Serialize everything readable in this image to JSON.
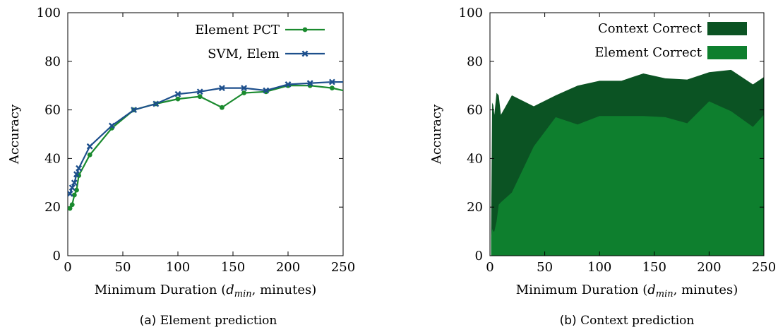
{
  "chart_data": [
    {
      "type": "line",
      "caption_letter": "(a)",
      "caption_text": "Element prediction",
      "xlabel": "Minimum Duration (d_min, minutes)",
      "xlabel_prefix": "Minimum Duration (",
      "xlabel_var": "d",
      "xlabel_sub": "min",
      "xlabel_suffix": ", minutes)",
      "ylabel": "Accuracy",
      "xlim": [
        0,
        250
      ],
      "ylim": [
        0,
        100
      ],
      "xticks": [
        0,
        50,
        100,
        150,
        200,
        250
      ],
      "yticks": [
        0,
        20,
        40,
        60,
        80,
        100
      ],
      "legend_position": "top-right",
      "series": [
        {
          "name": "Element PCT",
          "color": "#1a8a2e",
          "marker": "circle",
          "x": [
            2,
            4,
            6,
            8,
            10,
            20,
            40,
            60,
            80,
            100,
            120,
            140,
            160,
            180,
            200,
            220,
            240,
            250
          ],
          "y": [
            19.5,
            21,
            25,
            27,
            33,
            41.5,
            52.5,
            60,
            62.5,
            64.5,
            65.5,
            61,
            67,
            67.5,
            70,
            70,
            69,
            68
          ]
        },
        {
          "name": "SVM, Elem",
          "color": "#1d4f8c",
          "marker": "x",
          "x": [
            2,
            4,
            6,
            8,
            10,
            20,
            40,
            60,
            80,
            100,
            120,
            140,
            160,
            180,
            200,
            220,
            240,
            250
          ],
          "y": [
            25.5,
            28,
            30,
            33.5,
            36,
            45,
            53.5,
            60,
            62.5,
            66.5,
            67.5,
            69,
            69,
            68,
            70.5,
            71,
            71.5,
            71.5
          ]
        }
      ]
    },
    {
      "type": "area",
      "caption_letter": "(b)",
      "caption_text": "Context prediction",
      "xlabel": "Minimum Duration (d_min, minutes)",
      "xlabel_prefix": "Minimum Duration (",
      "xlabel_var": "d",
      "xlabel_sub": "min",
      "xlabel_suffix": ", minutes)",
      "ylabel": "Accuracy",
      "xlim": [
        0,
        250
      ],
      "ylim": [
        0,
        100
      ],
      "xticks": [
        0,
        50,
        100,
        150,
        200,
        250
      ],
      "yticks": [
        0,
        20,
        40,
        60,
        80,
        100
      ],
      "legend_position": "top-right",
      "series": [
        {
          "name": "Context Correct",
          "color": "#0b5323",
          "x": [
            1,
            2,
            3,
            4,
            6,
            8,
            10,
            20,
            40,
            60,
            80,
            100,
            120,
            140,
            160,
            180,
            200,
            220,
            240,
            250
          ],
          "y": [
            7,
            63,
            62,
            58,
            67,
            66,
            58,
            66,
            61.5,
            66,
            70,
            72,
            72,
            75,
            73,
            72.5,
            75.5,
            76.5,
            70.5,
            73.5
          ]
        },
        {
          "name": "Element Correct",
          "color": "#0e7f2e",
          "x": [
            1,
            2,
            3,
            4,
            6,
            8,
            10,
            20,
            40,
            60,
            80,
            100,
            120,
            140,
            160,
            180,
            200,
            220,
            240,
            250
          ],
          "y": [
            7,
            11,
            10,
            10,
            14,
            21,
            22,
            26,
            45,
            57,
            54,
            57.5,
            57.5,
            57.5,
            57,
            54.5,
            63.5,
            59.5,
            53,
            58
          ]
        }
      ]
    }
  ]
}
